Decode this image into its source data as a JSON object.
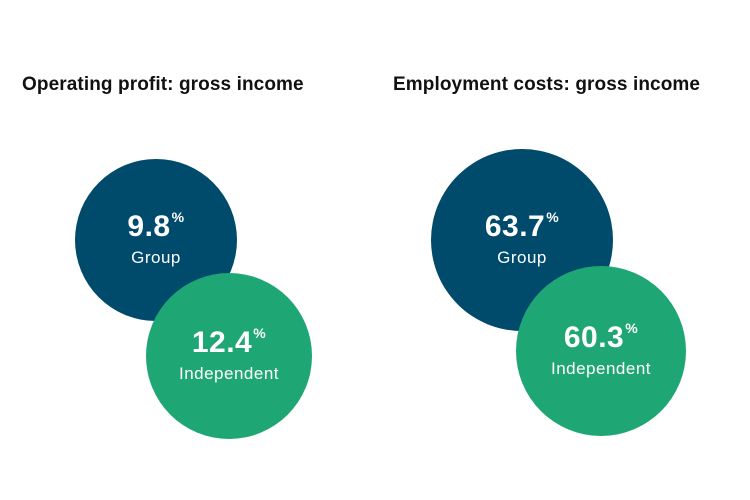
{
  "colors": {
    "group": "#004a6b",
    "independent": "#1fa675"
  },
  "chart_data": [
    {
      "type": "bubble",
      "title": "Operating profit: gross income",
      "unit": "%",
      "series": [
        {
          "name": "Group",
          "value": 9.8,
          "display": "9.8",
          "unit": "%"
        },
        {
          "name": "Independent",
          "value": 12.4,
          "display": "12.4",
          "unit": "%"
        }
      ]
    },
    {
      "type": "bubble",
      "title": "Employment costs: gross income",
      "unit": "%",
      "series": [
        {
          "name": "Group",
          "value": 63.7,
          "display": "63.7",
          "unit": "%"
        },
        {
          "name": "Independent",
          "value": 60.3,
          "display": "60.3",
          "unit": "%"
        }
      ]
    }
  ]
}
